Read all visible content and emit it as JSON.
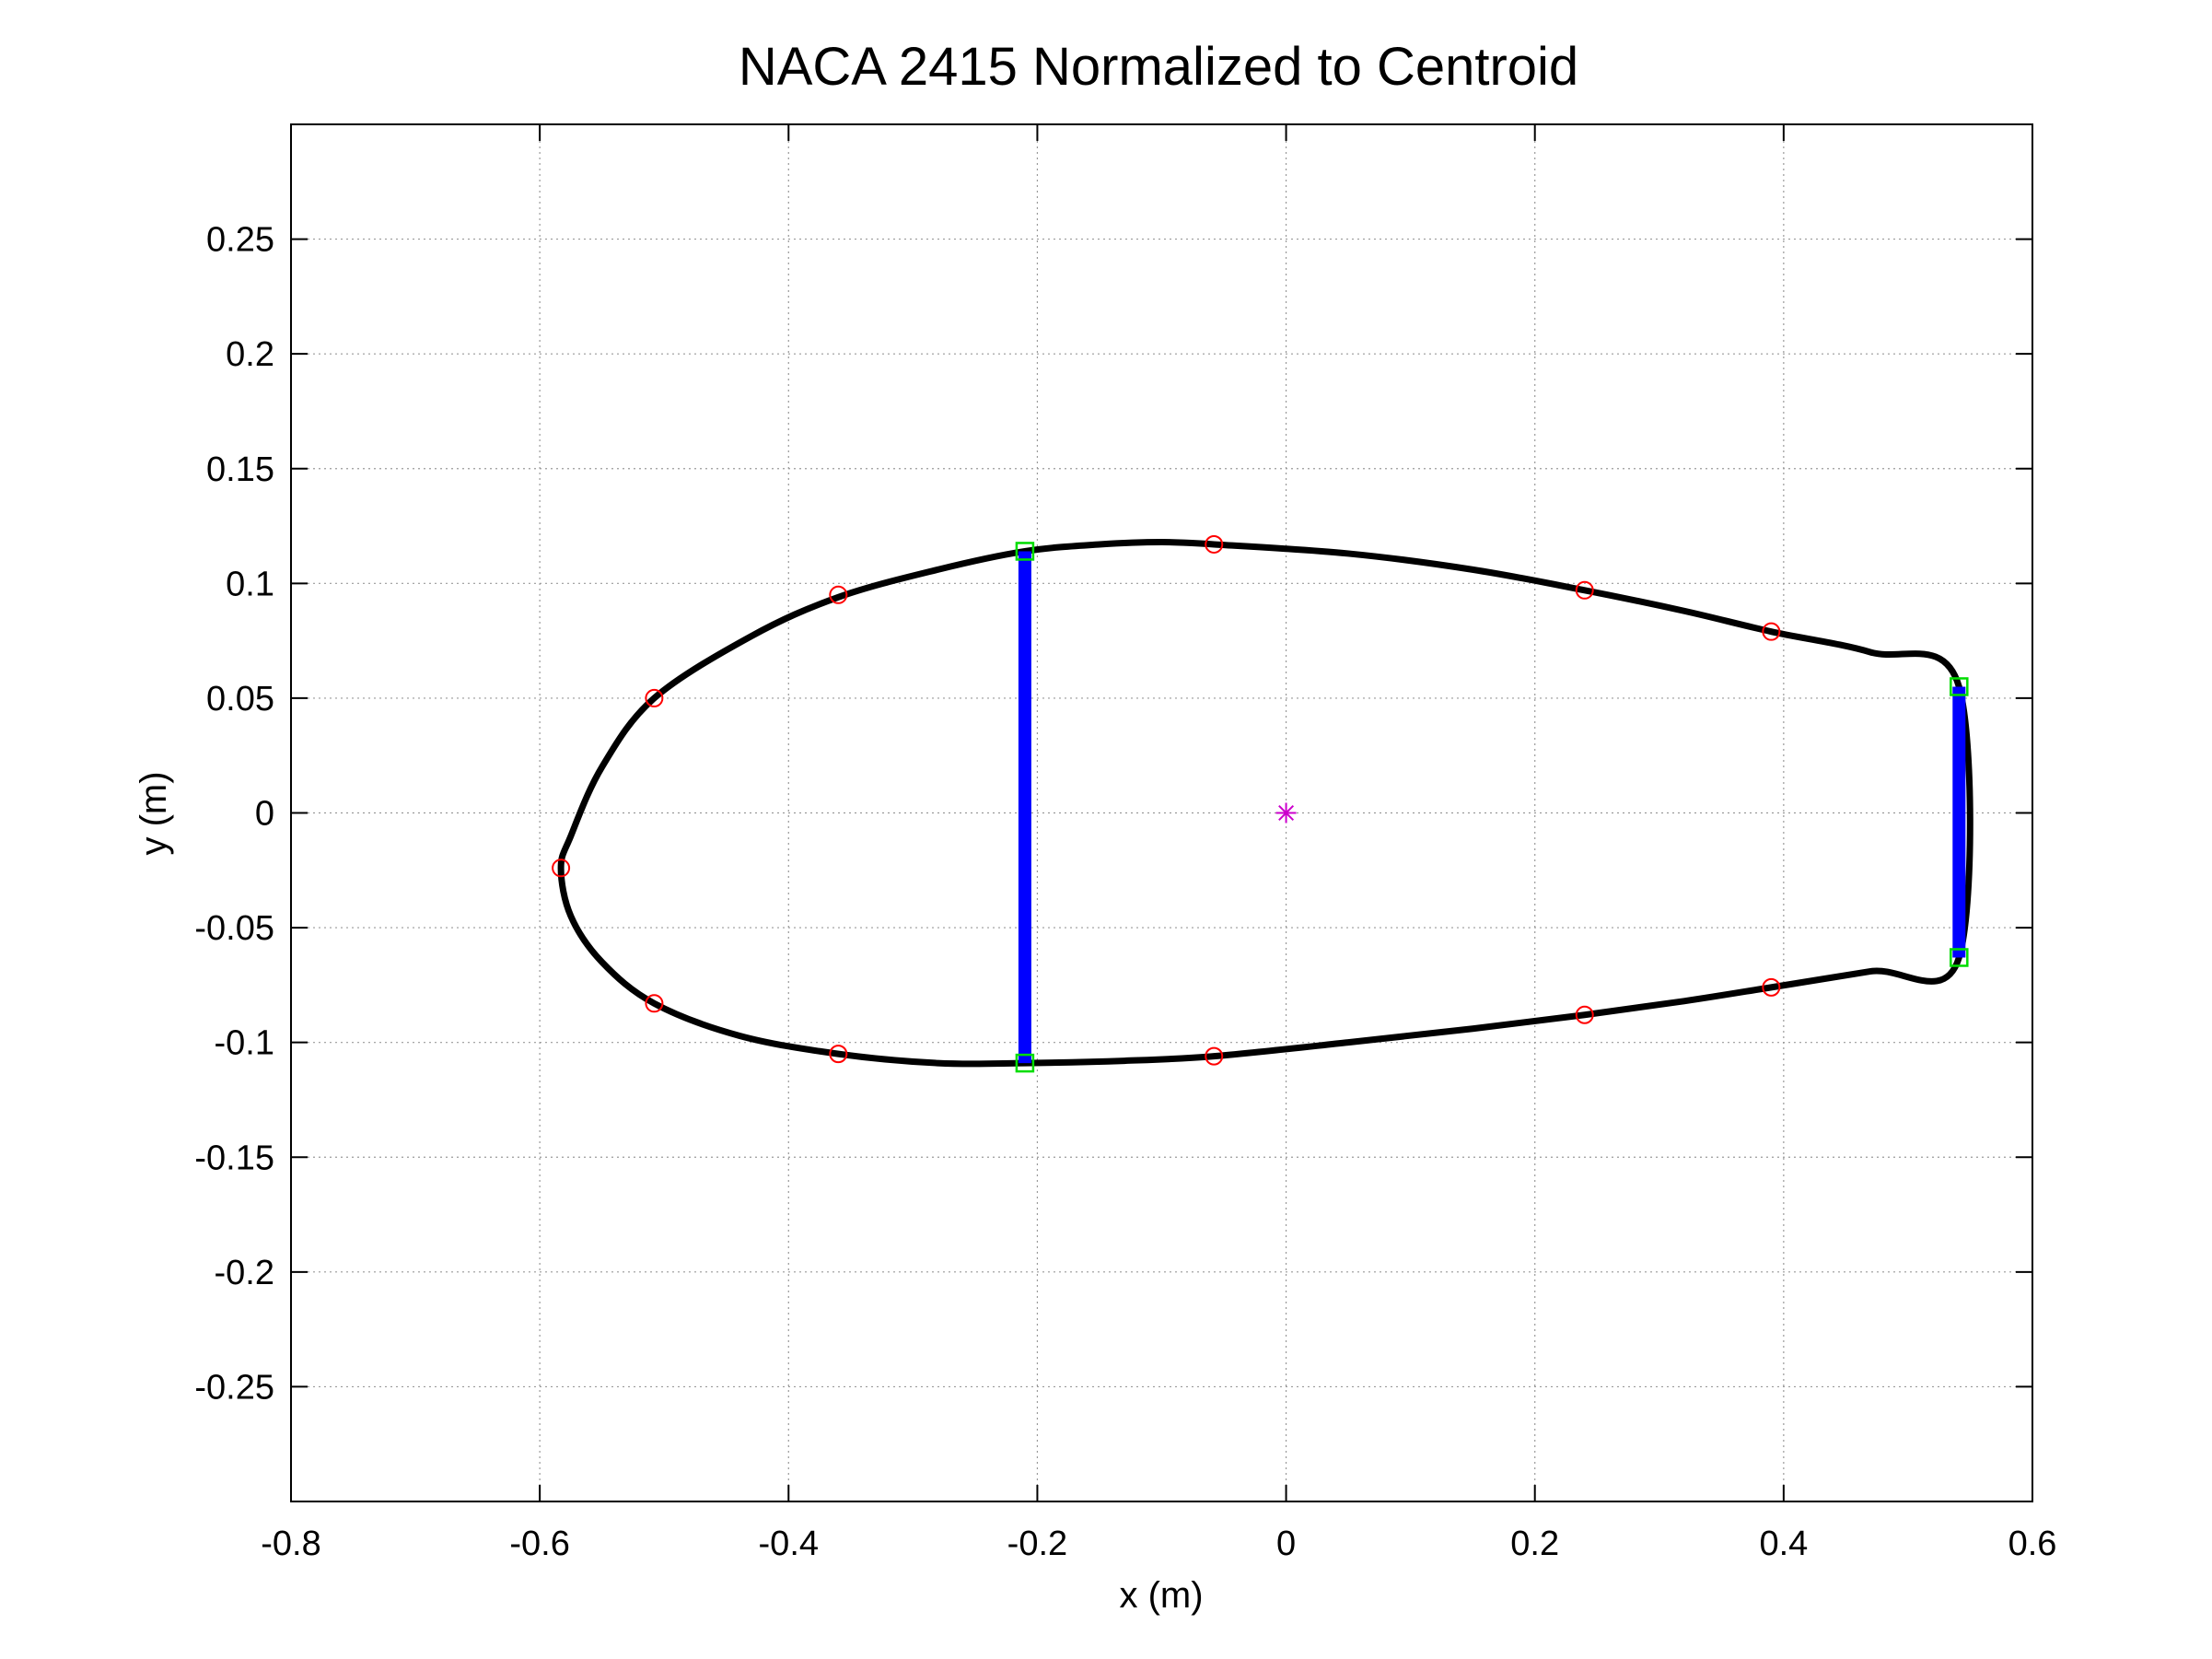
{
  "chart_data": {
    "type": "line",
    "title": "NACA 2415 Normalized to Centroid",
    "xlabel": "x (m)",
    "ylabel": "y (m)",
    "xlim": [
      -0.8,
      0.6
    ],
    "ylim": [
      -0.3,
      0.3
    ],
    "grid": true,
    "x_ticks": [
      -0.8,
      -0.6,
      -0.4,
      -0.2,
      0,
      0.2,
      0.4,
      0.6
    ],
    "x_tick_labels": [
      "-0.8",
      "-0.6",
      "-0.4",
      "-0.2",
      "0",
      "0.2",
      "0.4",
      "0.6"
    ],
    "y_ticks": [
      0.25,
      0.2,
      0.15,
      0.1,
      0.05,
      0,
      -0.05,
      -0.1,
      -0.15,
      -0.2,
      -0.25
    ],
    "y_tick_labels": [
      "0.25",
      "0.2",
      "0.15",
      "0.1",
      "0.05",
      "0",
      "-0.05",
      "-0.1",
      "-0.15",
      "-0.2",
      "-0.25"
    ],
    "series": [
      {
        "role": "airfoil-outline",
        "color": "#000000",
        "points": [
          [
            0.541,
            0.055
          ],
          [
            0.47,
            0.07
          ],
          [
            0.39,
            0.079
          ],
          [
            0.32,
            0.088
          ],
          [
            0.24,
            0.097
          ],
          [
            0.15,
            0.106
          ],
          [
            0.05,
            0.113
          ],
          [
            -0.058,
            0.117
          ],
          [
            -0.1,
            0.118
          ],
          [
            -0.15,
            0.117
          ],
          [
            -0.21,
            0.114
          ],
          [
            -0.28,
            0.106
          ],
          [
            -0.36,
            0.094
          ],
          [
            -0.43,
            0.077
          ],
          [
            -0.508,
            0.05
          ],
          [
            -0.55,
            0.02
          ],
          [
            -0.575,
            -0.01
          ],
          [
            -0.583,
            -0.024
          ],
          [
            -0.575,
            -0.045
          ],
          [
            -0.55,
            -0.065
          ],
          [
            -0.508,
            -0.083
          ],
          [
            -0.44,
            -0.097
          ],
          [
            -0.36,
            -0.105
          ],
          [
            -0.28,
            -0.109
          ],
          [
            -0.21,
            -0.109
          ],
          [
            -0.13,
            -0.108
          ],
          [
            -0.058,
            -0.106
          ],
          [
            0.05,
            -0.1
          ],
          [
            0.15,
            -0.094
          ],
          [
            0.24,
            -0.088
          ],
          [
            0.32,
            -0.082
          ],
          [
            0.39,
            -0.076
          ],
          [
            0.47,
            -0.069
          ],
          [
            0.541,
            -0.063
          ]
        ]
      },
      {
        "role": "spar-front",
        "color": "#0000ff",
        "points": [
          [
            -0.21,
            0.114
          ],
          [
            -0.21,
            -0.109
          ]
        ]
      },
      {
        "role": "spar-rear",
        "color": "#0000ff",
        "points": [
          [
            0.541,
            0.055
          ],
          [
            0.541,
            -0.063
          ]
        ]
      }
    ],
    "markers": {
      "circles": {
        "color": "#ff0000",
        "points": [
          [
            -0.058,
            0.117
          ],
          [
            0.24,
            0.097
          ],
          [
            0.39,
            0.079
          ],
          [
            -0.36,
            0.095
          ],
          [
            -0.508,
            0.05
          ],
          [
            -0.583,
            -0.024
          ],
          [
            -0.508,
            -0.083
          ],
          [
            -0.36,
            -0.105
          ],
          [
            -0.058,
            -0.106
          ],
          [
            0.24,
            -0.088
          ],
          [
            0.39,
            -0.076
          ]
        ]
      },
      "squares": {
        "color": "#00dd00",
        "points": [
          [
            -0.21,
            0.114
          ],
          [
            -0.21,
            -0.109
          ],
          [
            0.541,
            0.055
          ],
          [
            0.541,
            -0.063
          ]
        ]
      },
      "centroid": {
        "color": "#cc00cc",
        "symbol": "asterisk",
        "point": [
          0,
          0
        ]
      }
    }
  }
}
